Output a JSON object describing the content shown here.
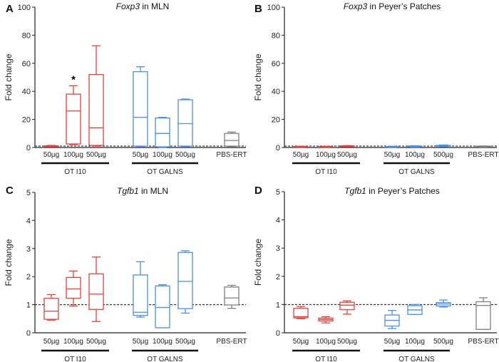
{
  "colors": {
    "ot_i10": "#e8403a",
    "ot_galns": "#4a90e2",
    "pbs": "#808080"
  },
  "chart_data": [
    {
      "type": "box",
      "panel": "A",
      "title_gene": "Foxp3",
      "title_rest": " in MLN",
      "ylabel": "Fold change",
      "ylim": [
        0,
        100
      ],
      "yticks": [
        0,
        20,
        40,
        60,
        80,
        100
      ],
      "reference_line": 1,
      "categories": [
        "50µg",
        "100µg",
        "500µg",
        "50µg",
        "100µg",
        "500µg",
        "PBS-ERT"
      ],
      "groups": [
        {
          "label": "OT I10",
          "members": [
            0,
            1,
            2
          ]
        },
        {
          "label": "OT GALNS",
          "members": [
            3,
            4,
            5
          ]
        }
      ],
      "series_colors": [
        "ot_i10",
        "ot_i10",
        "ot_i10",
        "ot_galns",
        "ot_galns",
        "ot_galns",
        "pbs"
      ],
      "boxes": [
        [
          0.5,
          0.7,
          1,
          1.2,
          1.5
        ],
        [
          2,
          2.5,
          26,
          38,
          44
        ],
        [
          1,
          1.5,
          14,
          52,
          72.5
        ],
        [
          0.5,
          1,
          21.5,
          54,
          57.5
        ],
        [
          0,
          0.5,
          10,
          21,
          21.5
        ],
        [
          0.5,
          1,
          17,
          34,
          34.5
        ],
        [
          0.5,
          1,
          5,
          10,
          11
        ]
      ],
      "annotations": [
        {
          "category": 1,
          "text": "*",
          "y": 49
        }
      ]
    },
    {
      "type": "box",
      "panel": "B",
      "title_gene": "Foxp3",
      "title_rest": " in Peyer’s Patches",
      "ylabel": "Fold change",
      "ylim": [
        0,
        100
      ],
      "yticks": [
        0,
        20,
        40,
        60,
        80,
        100
      ],
      "reference_line": 1,
      "categories": [
        "50µg",
        "100µg",
        "500µg",
        "50µg",
        "100µg",
        "500µg",
        "PBS-ERT"
      ],
      "groups": [
        {
          "label": "OT I10",
          "members": [
            0,
            1,
            2
          ]
        },
        {
          "label": "OT GALNS",
          "members": [
            3,
            4,
            5
          ]
        }
      ],
      "series_colors": [
        "ot_i10",
        "ot_i10",
        "ot_i10",
        "ot_galns",
        "ot_galns",
        "ot_galns",
        "pbs"
      ],
      "boxes": [
        [
          0.2,
          0.3,
          0.5,
          0.7,
          0.9
        ],
        [
          0.2,
          0.3,
          0.4,
          0.6,
          0.8
        ],
        [
          0.5,
          0.7,
          1,
          1.2,
          1.4
        ],
        [
          0.2,
          0.3,
          0.5,
          0.7,
          0.9
        ],
        [
          0.3,
          0.5,
          0.8,
          1.1,
          1.3
        ],
        [
          0.6,
          0.9,
          1.2,
          1.5,
          1.8
        ],
        [
          0.3,
          0.5,
          0.8,
          1,
          1.1
        ]
      ],
      "annotations": []
    },
    {
      "type": "box",
      "panel": "C",
      "title_gene": "Tgfb1",
      "title_rest": " in MLN",
      "ylabel": "Fold change",
      "ylim": [
        0,
        5
      ],
      "yticks": [
        0,
        1,
        2,
        3,
        4,
        5
      ],
      "reference_line": 1,
      "categories": [
        "50µg",
        "100µg",
        "500µg",
        "50µg",
        "100µg",
        "500µg",
        "PBS-ERT"
      ],
      "groups": [
        {
          "label": "OT I10",
          "members": [
            0,
            1,
            2
          ]
        },
        {
          "label": "OT GALNS",
          "members": [
            3,
            4,
            5
          ]
        }
      ],
      "series_colors": [
        "ot_i10",
        "ot_i10",
        "ot_i10",
        "ot_galns",
        "ot_galns",
        "ot_galns",
        "pbs"
      ],
      "boxes": [
        [
          0.45,
          0.48,
          0.77,
          1.23,
          1.36
        ],
        [
          0.95,
          1.23,
          1.56,
          1.97,
          2.2
        ],
        [
          0.4,
          0.83,
          1.38,
          2.1,
          2.7
        ],
        [
          0.56,
          0.62,
          0.73,
          2.06,
          2.53
        ],
        [
          0.18,
          0.18,
          0.9,
          1.67,
          1.71
        ],
        [
          0.7,
          0.86,
          1.83,
          2.86,
          2.92
        ],
        [
          0.87,
          0.99,
          1.24,
          1.63,
          1.69
        ]
      ],
      "annotations": []
    },
    {
      "type": "box",
      "panel": "D",
      "title_gene": "Tgfb1",
      "title_rest": " in Peyer’s Patches",
      "ylabel": "Fold change",
      "ylim": [
        0,
        5
      ],
      "yticks": [
        0,
        1,
        2,
        3,
        4,
        5
      ],
      "reference_line": 1,
      "categories": [
        "50µg",
        "100µg",
        "500µg",
        "50µg",
        "100µg",
        "500µg",
        "PBS-ERT"
      ],
      "groups": [
        {
          "label": "OT I10",
          "members": [
            0,
            1,
            2
          ]
        },
        {
          "label": "OT GALNS",
          "members": [
            3,
            4,
            5
          ]
        }
      ],
      "series_colors": [
        "ot_i10",
        "ot_i10",
        "ot_i10",
        "ot_galns",
        "ot_galns",
        "ot_galns",
        "pbs"
      ],
      "boxes": [
        [
          0.5,
          0.53,
          0.57,
          0.87,
          0.93
        ],
        [
          0.35,
          0.42,
          0.47,
          0.52,
          0.57
        ],
        [
          0.66,
          0.82,
          0.98,
          1.08,
          1.13
        ],
        [
          0.15,
          0.24,
          0.44,
          0.63,
          0.79
        ],
        [
          0.65,
          0.65,
          0.81,
          0.96,
          1.0
        ],
        [
          0.91,
          0.95,
          1.02,
          1.07,
          1.16
        ],
        [
          0.12,
          0.12,
          0.97,
          1.1,
          1.24
        ]
      ],
      "annotations": []
    }
  ]
}
